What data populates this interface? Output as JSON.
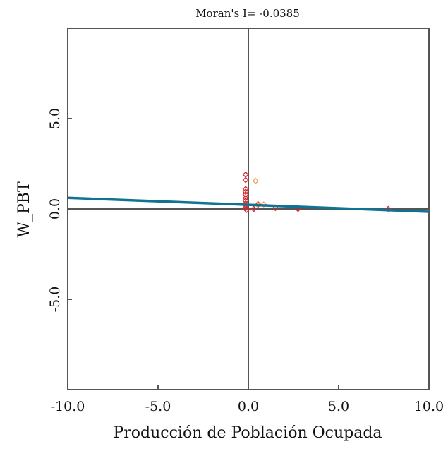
{
  "chart_data": {
    "type": "scatter",
    "title": "Moran's I= -0.0385",
    "xlabel": "Producción de Población Ocupada",
    "ylabel": "W_PBT",
    "xlim": [
      -10.0,
      10.0
    ],
    "ylim": [
      -10.0,
      10.0
    ],
    "xticks": [
      "-10.0",
      "-5.0",
      "0.0",
      "5.0",
      "10.0"
    ],
    "xtick_values": [
      -10,
      -5,
      0,
      5,
      10
    ],
    "yticks": [
      "5.0",
      "0.0",
      "-5.0"
    ],
    "ytick_values": [
      5,
      0,
      -5
    ],
    "grid": false,
    "reference_lines": {
      "x": 0,
      "y": 0,
      "color": "#555555"
    },
    "series": [
      {
        "color": "#d9262e",
        "marker": "diamond",
        "points": [
          [
            -0.15,
            1.9
          ],
          [
            -0.15,
            1.6
          ],
          [
            -0.15,
            1.1
          ],
          [
            -0.15,
            0.95
          ],
          [
            -0.15,
            0.8
          ],
          [
            -0.15,
            0.6
          ],
          [
            -0.15,
            0.45
          ],
          [
            -0.15,
            0.3
          ],
          [
            -0.15,
            0.2
          ],
          [
            -0.15,
            0.05
          ],
          [
            -0.1,
            -0.05
          ],
          [
            0.3,
            0.0
          ],
          [
            0.55,
            0.25
          ],
          [
            1.5,
            0.05
          ],
          [
            2.75,
            0.0
          ],
          [
            7.75,
            0.0
          ]
        ]
      },
      {
        "color": "#f2a25c",
        "marker": "diamond",
        "points": [
          [
            0.4,
            1.55
          ],
          [
            0.5,
            0.25
          ],
          [
            0.85,
            0.25
          ]
        ]
      }
    ],
    "regression_line": {
      "slope": -0.0385,
      "intercept": 0.23,
      "color": "#0e7491"
    }
  }
}
